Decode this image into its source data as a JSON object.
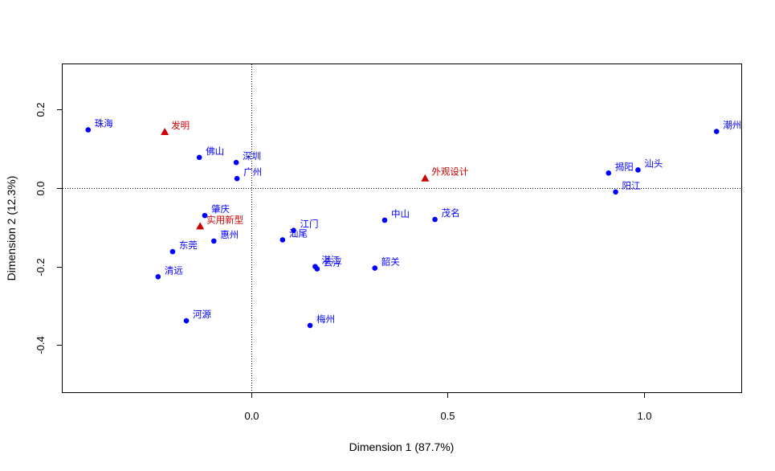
{
  "chart_data": {
    "type": "scatter",
    "title": "",
    "xlabel": "Dimension 1 (87.7%)",
    "ylabel": "Dimension 2 (12.3%)",
    "xlim": [
      -0.48,
      1.25
    ],
    "ylim": [
      -0.52,
      0.315
    ],
    "xticks": [
      0.0,
      0.5,
      1.0
    ],
    "xtick_labels": [
      "0.0",
      "0.5",
      "1.0"
    ],
    "yticks": [
      0.2,
      0.0,
      -0.2,
      -0.4
    ],
    "ytick_labels": [
      "0.2",
      "0.0",
      "-0.2",
      "-0.4"
    ],
    "reference_lines": {
      "x": 0,
      "y": 0,
      "style": "dotted"
    },
    "colors": {
      "rows": "#0000ff",
      "cols": "#cc0000"
    },
    "series": [
      {
        "name": "rows",
        "marker": "circle",
        "points": [
          {
            "label": "珠海",
            "x": -0.415,
            "y": 0.148
          },
          {
            "label": "佛山",
            "x": -0.132,
            "y": 0.078
          },
          {
            "label": "深圳",
            "x": -0.038,
            "y": 0.065
          },
          {
            "label": "广州",
            "x": -0.036,
            "y": 0.024
          },
          {
            "label": "肇庆",
            "x": -0.118,
            "y": -0.07
          },
          {
            "label": "惠州",
            "x": -0.095,
            "y": -0.135
          },
          {
            "label": "东莞",
            "x": -0.2,
            "y": -0.162
          },
          {
            "label": "清远",
            "x": -0.237,
            "y": -0.226
          },
          {
            "label": "河源",
            "x": -0.165,
            "y": -0.338
          },
          {
            "label": "江门",
            "x": 0.108,
            "y": -0.108
          },
          {
            "label": "汕尾",
            "x": 0.08,
            "y": -0.132
          },
          {
            "label": "湛江",
            "x": 0.163,
            "y": -0.2
          },
          {
            "label": "云浮",
            "x": 0.168,
            "y": -0.206
          },
          {
            "label": "梅州",
            "x": 0.15,
            "y": -0.35
          },
          {
            "label": "韶关",
            "x": 0.315,
            "y": -0.204
          },
          {
            "label": "中山",
            "x": 0.34,
            "y": -0.082
          },
          {
            "label": "茂名",
            "x": 0.468,
            "y": -0.08
          },
          {
            "label": "揭阳",
            "x": 0.91,
            "y": 0.038
          },
          {
            "label": "汕头",
            "x": 0.985,
            "y": 0.046
          },
          {
            "label": "阳江",
            "x": 0.928,
            "y": -0.01
          },
          {
            "label": "潮州",
            "x": 1.185,
            "y": 0.144
          }
        ]
      },
      {
        "name": "cols",
        "marker": "triangle",
        "points": [
          {
            "label": "发明",
            "x": -0.22,
            "y": 0.143
          },
          {
            "label": "外观设计",
            "x": 0.443,
            "y": 0.025
          },
          {
            "label": "实用新型",
            "x": -0.13,
            "y": -0.097
          }
        ]
      }
    ]
  }
}
